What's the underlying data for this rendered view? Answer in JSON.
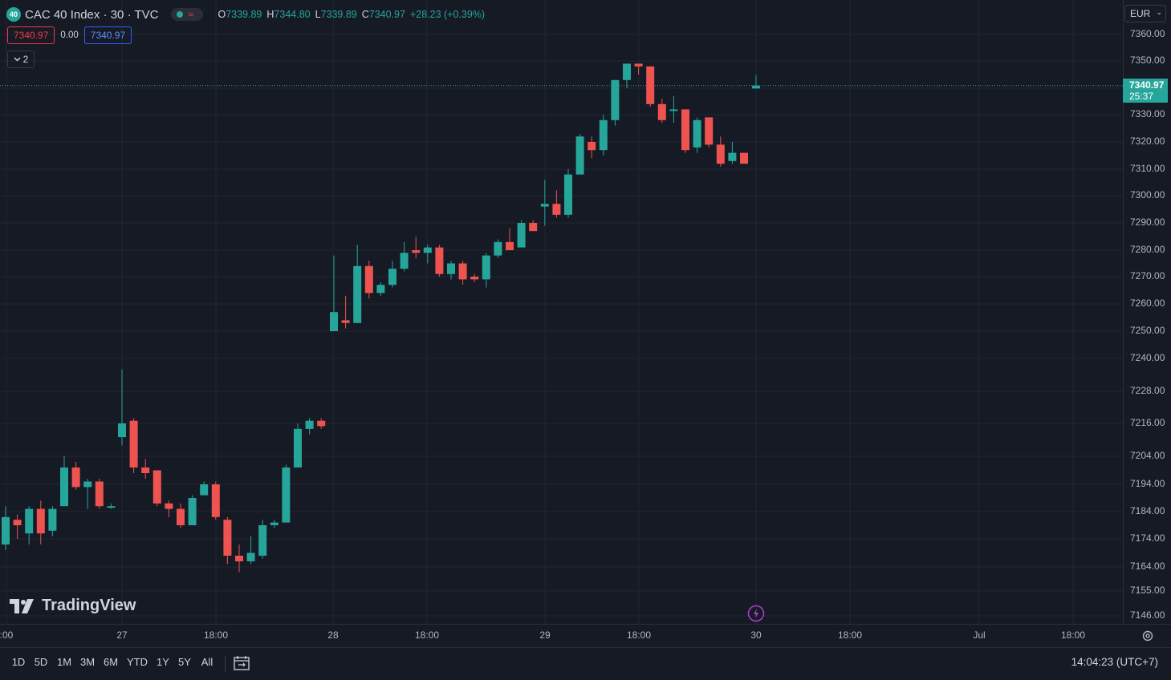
{
  "legend": {
    "logo_text": "40",
    "title": "CAC 40 Index · 30 · TVC",
    "open_label": "O",
    "open": "7339.89",
    "high_label": "H",
    "high": "7344.80",
    "low_label": "L",
    "low": "7339.89",
    "close_label": "C",
    "close": "7340.97",
    "change": "+28.23 (+0.39%)"
  },
  "trade": {
    "sell": "7340.97",
    "spread": "0.00",
    "buy": "7340.97"
  },
  "indicators_collapsed": "2",
  "currency": "EUR",
  "last_price": {
    "price": "7340.97",
    "countdown": "25:37"
  },
  "colors": {
    "up": "#26a69a",
    "down": "#ef5350",
    "background": "#161a25",
    "grid": "#232632"
  },
  "watermark": "TradingView",
  "range_buttons": [
    "1D",
    "5D",
    "1M",
    "3M",
    "6M",
    "YTD",
    "1Y",
    "5Y",
    "All"
  ],
  "clock": "14:04:23 (UTC+7)",
  "chart_data": {
    "type": "candlestick",
    "symbol": "CAC 40 Index",
    "interval": "30",
    "y_ticks": [
      7360,
      7350,
      7340,
      7330,
      7320,
      7310,
      7300,
      7290,
      7280,
      7270,
      7260,
      7250,
      7240,
      7228,
      7216,
      7204,
      7194,
      7184,
      7174,
      7164,
      7155,
      7146
    ],
    "y_tick_labels": [
      "7360.00",
      "7350.00",
      "7340.00",
      "7330.00",
      "7320.00",
      "7310.00",
      "7300.00",
      "7290.00",
      "7280.00",
      "7270.00",
      "7260.00",
      "7250.00",
      "7240.00",
      "7228.00",
      "7216.00",
      "7204.00",
      "7194.00",
      "7184.00",
      "7174.00",
      "7164.00",
      "7155.00",
      "7146.00"
    ],
    "x_tick_labels": [
      ":00",
      "27",
      "18:00",
      "28",
      "18:00",
      "29",
      "18:00",
      "30",
      "18:00",
      "Jul",
      "18:00"
    ],
    "candles": [
      {
        "o": 7172,
        "h": 7186,
        "l": 7170,
        "c": 7182
      },
      {
        "o": 7181,
        "h": 7183,
        "l": 7174,
        "c": 7179
      },
      {
        "o": 7176,
        "h": 7186,
        "l": 7172,
        "c": 7185
      },
      {
        "o": 7185,
        "h": 7188,
        "l": 7172,
        "c": 7176
      },
      {
        "o": 7177,
        "h": 7186,
        "l": 7175,
        "c": 7185
      },
      {
        "o": 7186,
        "h": 7204,
        "l": 7186,
        "c": 7200
      },
      {
        "o": 7200,
        "h": 7202,
        "l": 7192,
        "c": 7193
      },
      {
        "o": 7193,
        "h": 7196,
        "l": 7185,
        "c": 7195
      },
      {
        "o": 7195,
        "h": 7196,
        "l": 7185,
        "c": 7186
      },
      {
        "o": 7186,
        "h": 7187,
        "l": 7185,
        "c": 7186
      },
      {
        "o": 7211,
        "h": 7236,
        "l": 7208,
        "c": 7216
      },
      {
        "o": 7217,
        "h": 7218,
        "l": 7198,
        "c": 7200
      },
      {
        "o": 7200,
        "h": 7203,
        "l": 7196,
        "c": 7198
      },
      {
        "o": 7199,
        "h": 7199,
        "l": 7186,
        "c": 7187
      },
      {
        "o": 7187,
        "h": 7188,
        "l": 7182,
        "c": 7185
      },
      {
        "o": 7185,
        "h": 7187,
        "l": 7178,
        "c": 7179
      },
      {
        "o": 7179,
        "h": 7190,
        "l": 7179,
        "c": 7189
      },
      {
        "o": 7190,
        "h": 7195,
        "l": 7190,
        "c": 7194
      },
      {
        "o": 7194,
        "h": 7195,
        "l": 7181,
        "c": 7182
      },
      {
        "o": 7181,
        "h": 7182,
        "l": 7165,
        "c": 7168
      },
      {
        "o": 7168,
        "h": 7172,
        "l": 7162,
        "c": 7166
      },
      {
        "o": 7166,
        "h": 7175,
        "l": 7165,
        "c": 7169
      },
      {
        "o": 7168,
        "h": 7181,
        "l": 7167,
        "c": 7179
      },
      {
        "o": 7179,
        "h": 7181,
        "l": 7178,
        "c": 7180
      },
      {
        "o": 7180,
        "h": 7201,
        "l": 7180,
        "c": 7200
      },
      {
        "o": 7200,
        "h": 7216,
        "l": 7200,
        "c": 7214
      },
      {
        "o": 7214,
        "h": 7218,
        "l": 7212,
        "c": 7217
      },
      {
        "o": 7217,
        "h": 7218,
        "l": 7214,
        "c": 7215
      },
      {
        "o": 7250,
        "h": 7278,
        "l": 7250,
        "c": 7257
      },
      {
        "o": 7254,
        "h": 7263,
        "l": 7251,
        "c": 7253
      },
      {
        "o": 7253,
        "h": 7282,
        "l": 7253,
        "c": 7274
      },
      {
        "o": 7274,
        "h": 7276,
        "l": 7262,
        "c": 7264
      },
      {
        "o": 7264,
        "h": 7268,
        "l": 7263,
        "c": 7267
      },
      {
        "o": 7267,
        "h": 7276,
        "l": 7266,
        "c": 7273
      },
      {
        "o": 7273,
        "h": 7283,
        "l": 7272,
        "c": 7279
      },
      {
        "o": 7280,
        "h": 7285,
        "l": 7277,
        "c": 7279
      },
      {
        "o": 7279,
        "h": 7282,
        "l": 7275,
        "c": 7281
      },
      {
        "o": 7281,
        "h": 7282,
        "l": 7270,
        "c": 7271
      },
      {
        "o": 7271,
        "h": 7276,
        "l": 7269,
        "c": 7275
      },
      {
        "o": 7275,
        "h": 7276,
        "l": 7267,
        "c": 7269
      },
      {
        "o": 7270,
        "h": 7271,
        "l": 7268,
        "c": 7269
      },
      {
        "o": 7269,
        "h": 7279,
        "l": 7266,
        "c": 7278
      },
      {
        "o": 7278,
        "h": 7284,
        "l": 7277,
        "c": 7283
      },
      {
        "o": 7283,
        "h": 7288,
        "l": 7280,
        "c": 7280
      },
      {
        "o": 7281,
        "h": 7291,
        "l": 7281,
        "c": 7290
      },
      {
        "o": 7290,
        "h": 7291,
        "l": 7287,
        "c": 7287
      },
      {
        "o": 7296,
        "h": 7306,
        "l": 7289,
        "c": 7297
      },
      {
        "o": 7297,
        "h": 7302,
        "l": 7292,
        "c": 7293
      },
      {
        "o": 7293,
        "h": 7310,
        "l": 7292,
        "c": 7308
      },
      {
        "o": 7308,
        "h": 7323,
        "l": 7308,
        "c": 7322
      },
      {
        "o": 7320,
        "h": 7322,
        "l": 7314,
        "c": 7317
      },
      {
        "o": 7317,
        "h": 7330,
        "l": 7315,
        "c": 7328
      },
      {
        "o": 7328,
        "h": 7343,
        "l": 7326,
        "c": 7343
      },
      {
        "o": 7343,
        "h": 7349,
        "l": 7340,
        "c": 7349
      },
      {
        "o": 7349,
        "h": 7349,
        "l": 7345,
        "c": 7348
      },
      {
        "o": 7348,
        "h": 7348,
        "l": 7333,
        "c": 7334
      },
      {
        "o": 7334,
        "h": 7336,
        "l": 7327,
        "c": 7328
      },
      {
        "o": 7332,
        "h": 7337,
        "l": 7327,
        "c": 7332
      },
      {
        "o": 7332,
        "h": 7332,
        "l": 7316,
        "c": 7317
      },
      {
        "o": 7318,
        "h": 7329,
        "l": 7316,
        "c": 7328
      },
      {
        "o": 7329,
        "h": 7329,
        "l": 7318,
        "c": 7319
      },
      {
        "o": 7319,
        "h": 7322,
        "l": 7311,
        "c": 7312
      },
      {
        "o": 7313,
        "h": 7320,
        "l": 7312,
        "c": 7316
      },
      {
        "o": 7316,
        "h": 7316,
        "l": 7312,
        "c": 7312
      },
      {
        "o": 7339.89,
        "h": 7344.8,
        "l": 7339.89,
        "c": 7340.97
      }
    ]
  }
}
